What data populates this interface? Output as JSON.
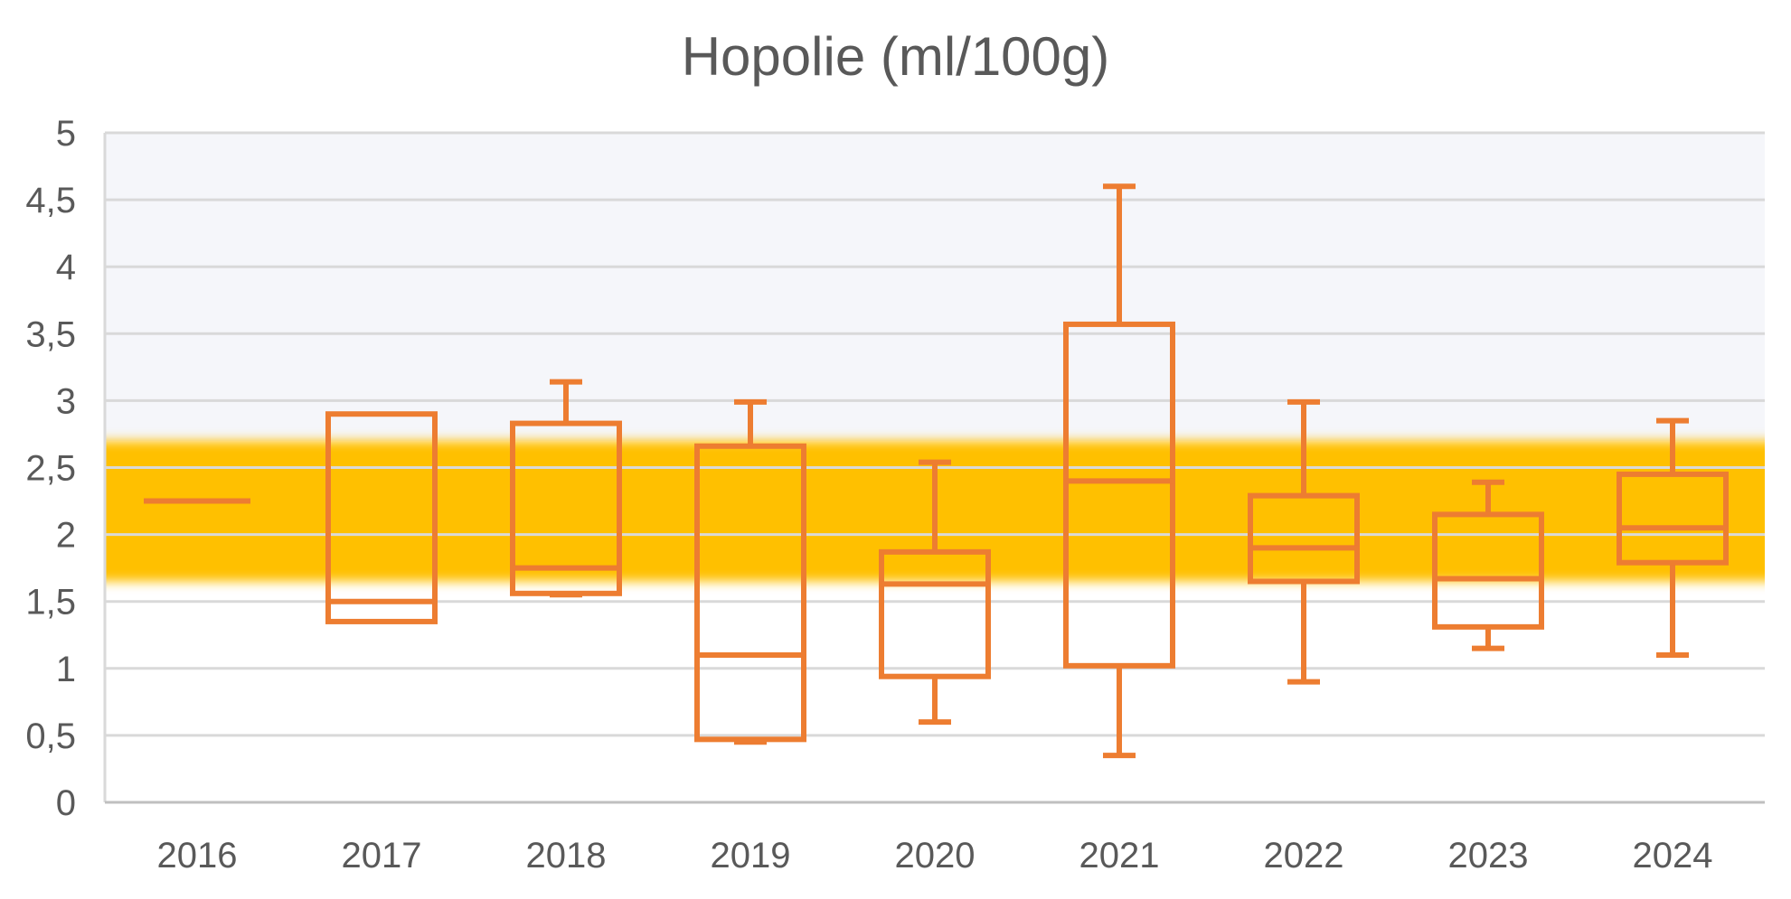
{
  "chart_data": {
    "type": "boxplot",
    "title": "Hopolie (ml/100g)",
    "xlabel": "",
    "ylabel": "",
    "ylim": [
      0,
      5
    ],
    "y_ticks": [
      "0",
      "0,5",
      "1",
      "1,5",
      "2",
      "2,5",
      "3",
      "3,5",
      "4",
      "4,5",
      "5"
    ],
    "y_tick_values": [
      0,
      0.5,
      1,
      1.5,
      2,
      2.5,
      3,
      3.5,
      4,
      4.5,
      5
    ],
    "grid": true,
    "reference_band": {
      "from": 1.65,
      "to": 2.7,
      "color": "#FFC000"
    },
    "upper_region_color": "#F5F6FA",
    "box_color": "#ED7D31",
    "categories": [
      "2016",
      "2017",
      "2018",
      "2019",
      "2020",
      "2021",
      "2022",
      "2023",
      "2024"
    ],
    "boxes": [
      {
        "min": 2.25,
        "q1": 2.25,
        "median": 2.25,
        "q3": 2.25,
        "max": 2.25
      },
      {
        "min": 1.35,
        "q1": 1.35,
        "median": 1.5,
        "q3": 2.9,
        "max": 2.9
      },
      {
        "min": 1.55,
        "q1": 1.56,
        "median": 1.75,
        "q3": 2.83,
        "max": 3.14
      },
      {
        "min": 0.45,
        "q1": 0.47,
        "median": 1.1,
        "q3": 2.66,
        "max": 2.99
      },
      {
        "min": 0.6,
        "q1": 0.94,
        "median": 1.63,
        "q3": 1.87,
        "max": 2.54
      },
      {
        "min": 0.35,
        "q1": 1.02,
        "median": 2.4,
        "q3": 3.57,
        "max": 4.6
      },
      {
        "min": 0.9,
        "q1": 1.65,
        "median": 1.9,
        "q3": 2.29,
        "max": 2.99
      },
      {
        "min": 1.15,
        "q1": 1.31,
        "median": 1.67,
        "q3": 2.15,
        "max": 2.39
      },
      {
        "min": 1.1,
        "q1": 1.79,
        "median": 2.05,
        "q3": 2.45,
        "max": 2.85
      }
    ]
  }
}
